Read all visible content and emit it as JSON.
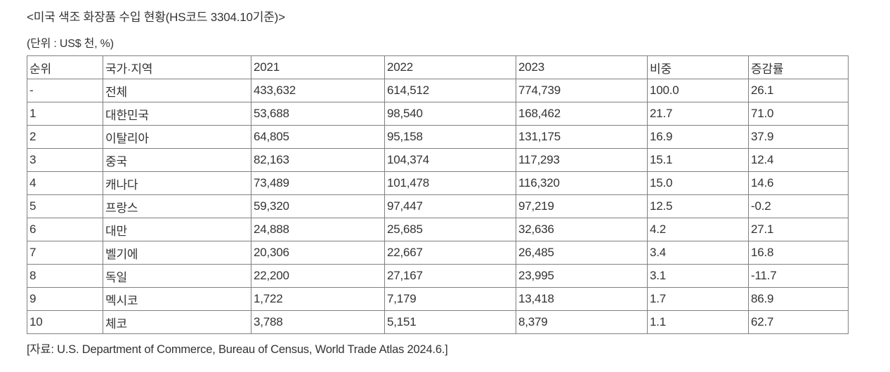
{
  "title": "<미국 색조 화장품 수입 현황(HS코드 3304.10기준)>",
  "unit_note": "(단위 : US$ 천, %)",
  "source_note": "[자료: U.S. Department of Commerce, Bureau of Census, World Trade Atlas 2024.6.]",
  "colors": {
    "border": "#808080",
    "text": "#333333",
    "background": "#ffffff"
  },
  "table": {
    "columns": [
      "순위",
      "국가·지역",
      "2021",
      "2022",
      "2023",
      "비중",
      "증감률"
    ],
    "rows": [
      [
        "-",
        "전체",
        "433,632",
        "614,512",
        "774,739",
        "100.0",
        "26.1"
      ],
      [
        "1",
        "대한민국",
        "53,688",
        "98,540",
        "168,462",
        "21.7",
        "71.0"
      ],
      [
        "2",
        "이탈리아",
        "64,805",
        "95,158",
        "131,175",
        "16.9",
        "37.9"
      ],
      [
        "3",
        "중국",
        "82,163",
        "104,374",
        "117,293",
        "15.1",
        "12.4"
      ],
      [
        "4",
        "캐나다",
        "73,489",
        "101,478",
        "116,320",
        "15.0",
        "14.6"
      ],
      [
        "5",
        "프랑스",
        "59,320",
        "97,447",
        "97,219",
        "12.5",
        "-0.2"
      ],
      [
        "6",
        "대만",
        "24,888",
        "25,685",
        "32,636",
        "4.2",
        "27.1"
      ],
      [
        "7",
        "벨기에",
        "20,306",
        "22,667",
        "26,485",
        "3.4",
        "16.8"
      ],
      [
        "8",
        "독일",
        "22,200",
        "27,167",
        "23,995",
        "3.1",
        "-11.7"
      ],
      [
        "9",
        "멕시코",
        "1,722",
        "7,179",
        "13,418",
        "1.7",
        "86.9"
      ],
      [
        "10",
        "체코",
        "3,788",
        "5,151",
        "8,379",
        "1.1",
        "62.7"
      ]
    ]
  }
}
